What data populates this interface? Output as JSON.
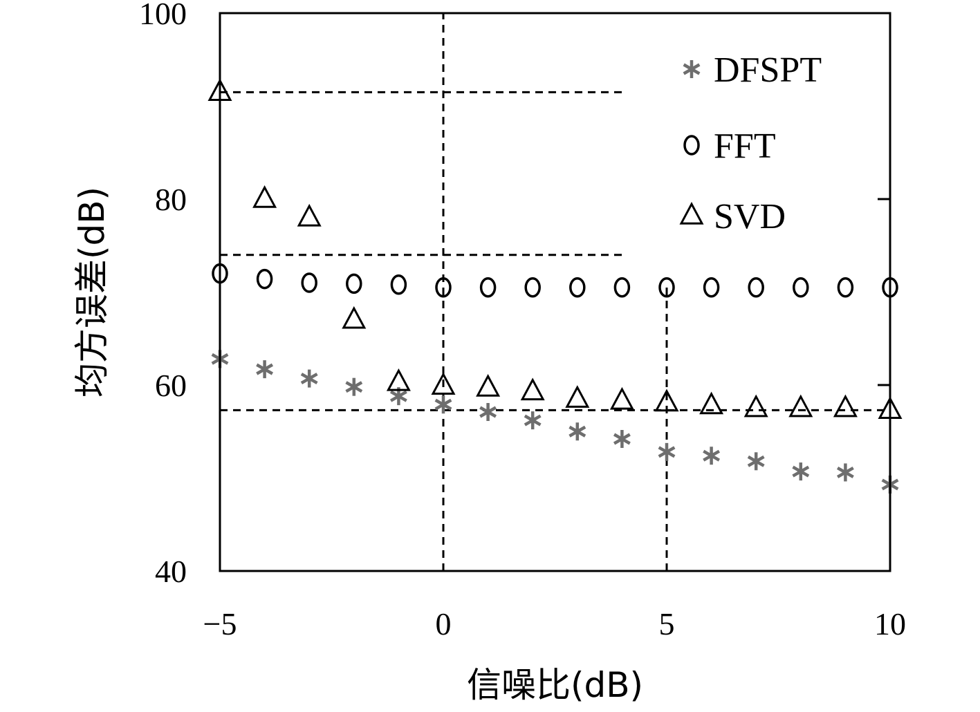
{
  "colors": {
    "dfspt": "#6e6e6e",
    "fft": "#000000",
    "svd": "#000000",
    "guides": "#000000"
  },
  "chart_data": {
    "type": "scatter",
    "xlabel": "信噪比(dB)",
    "ylabel": "均方误差(dB)",
    "xlim": [
      -5,
      10
    ],
    "ylim": [
      40,
      100
    ],
    "xticks": [
      -5,
      0,
      5,
      10
    ],
    "xtick_labels": [
      "−5",
      "0",
      "5",
      "10"
    ],
    "yticks": [
      40,
      60,
      80,
      100
    ],
    "ytick_labels": [
      "40",
      "60",
      "80",
      "100"
    ],
    "grid": false,
    "legend_position": "top-right",
    "series": [
      {
        "name": "DFSPT",
        "marker": "asterisk",
        "x": [
          -5,
          -4,
          -3,
          -2,
          -1,
          0,
          1,
          2,
          3,
          4,
          5,
          6,
          7,
          8,
          9,
          10
        ],
        "y": [
          62.8,
          61.7,
          60.7,
          59.8,
          58.8,
          57.9,
          57.1,
          56.2,
          55.0,
          54.2,
          52.8,
          52.4,
          51.8,
          50.7,
          50.6,
          49.3
        ]
      },
      {
        "name": "FFT",
        "marker": "circle",
        "x": [
          -5,
          -4,
          -3,
          -2,
          -1,
          0,
          1,
          2,
          3,
          4,
          5,
          6,
          7,
          8,
          9,
          10
        ],
        "y": [
          72.0,
          71.4,
          71.0,
          70.9,
          70.8,
          70.5,
          70.5,
          70.5,
          70.5,
          70.5,
          70.5,
          70.5,
          70.5,
          70.5,
          70.5,
          70.5
        ]
      },
      {
        "name": "SVD",
        "marker": "triangle",
        "x": [
          -5,
          -4,
          -3,
          -2,
          -1,
          0,
          1,
          2,
          3,
          4,
          5,
          6,
          7,
          8,
          9,
          10
        ],
        "y": [
          91.5,
          80.0,
          78.0,
          67.0,
          60.3,
          59.9,
          59.7,
          59.3,
          58.5,
          58.3,
          58.1,
          57.8,
          57.5,
          57.5,
          57.5,
          57.3
        ]
      }
    ],
    "reference_lines": [
      {
        "orientation": "horizontal",
        "y": 91.5,
        "x_from": -5,
        "x_to": 4
      },
      {
        "orientation": "horizontal",
        "y": 74.0,
        "x_from": -5,
        "x_to": 4
      },
      {
        "orientation": "horizontal",
        "y": 57.3,
        "x_from": -5,
        "x_to": 10
      },
      {
        "orientation": "vertical",
        "x": 0,
        "y_from": 40,
        "y_to": 100
      },
      {
        "orientation": "vertical",
        "x": 5,
        "y_from": 40,
        "y_to": 70.5
      }
    ]
  }
}
